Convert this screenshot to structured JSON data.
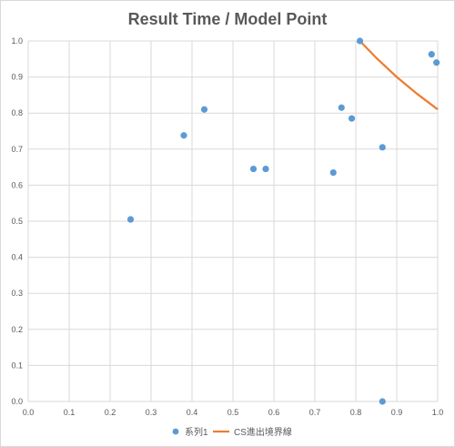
{
  "chart_data": {
    "type": "scatter",
    "title": "Result Time / Model Point",
    "xlim": [
      0,
      1
    ],
    "ylim": [
      0,
      1
    ],
    "x_ticks": [
      "0.0",
      "0.1",
      "0.2",
      "0.3",
      "0.4",
      "0.5",
      "0.6",
      "0.7",
      "0.8",
      "0.9",
      "1.0"
    ],
    "y_ticks": [
      "0.0",
      "0.1",
      "0.2",
      "0.3",
      "0.4",
      "0.5",
      "0.6",
      "0.7",
      "0.8",
      "0.9",
      "1.0"
    ],
    "grid": true,
    "legend_position": "bottom",
    "series": [
      {
        "name": "系列1",
        "kind": "markers",
        "color": "#5b9bd5",
        "points": [
          {
            "x": 0.25,
            "y": 0.505
          },
          {
            "x": 0.38,
            "y": 0.738
          },
          {
            "x": 0.43,
            "y": 0.81
          },
          {
            "x": 0.55,
            "y": 0.645
          },
          {
            "x": 0.58,
            "y": 0.645
          },
          {
            "x": 0.745,
            "y": 0.635
          },
          {
            "x": 0.765,
            "y": 0.815
          },
          {
            "x": 0.79,
            "y": 0.785
          },
          {
            "x": 0.81,
            "y": 1.0
          },
          {
            "x": 0.865,
            "y": 0.705
          },
          {
            "x": 0.865,
            "y": 0.0
          },
          {
            "x": 0.985,
            "y": 0.963
          },
          {
            "x": 0.997,
            "y": 0.94
          }
        ]
      },
      {
        "name": "CS進出境界線",
        "kind": "line",
        "color": "#ed7d31",
        "points": [
          {
            "x": 0.81,
            "y": 1.0
          },
          {
            "x": 0.85,
            "y": 0.953
          },
          {
            "x": 0.9,
            "y": 0.9
          },
          {
            "x": 0.95,
            "y": 0.853
          },
          {
            "x": 1.0,
            "y": 0.81
          }
        ]
      }
    ]
  }
}
